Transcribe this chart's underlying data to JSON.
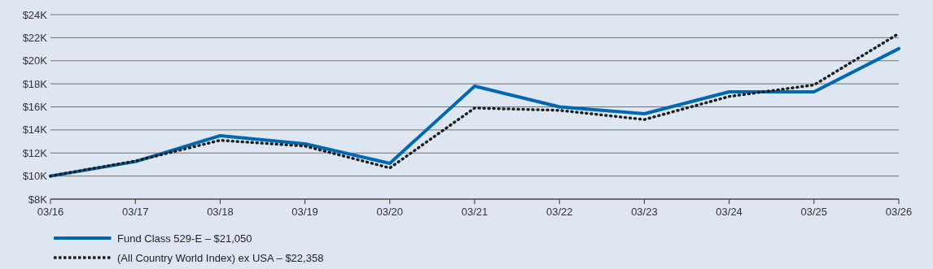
{
  "chart_data": {
    "type": "line",
    "categories": [
      "03/16",
      "03/17",
      "03/18",
      "03/19",
      "03/20",
      "03/21",
      "03/22",
      "03/23",
      "03/24",
      "03/25",
      "03/26"
    ],
    "series": [
      {
        "name": "Fund Class 529-E – $21,050",
        "color": "#0068b3",
        "line_style": "solid",
        "values": [
          10000,
          11250,
          13500,
          12800,
          11100,
          17800,
          16000,
          15400,
          17300,
          17300,
          21050
        ]
      },
      {
        "name": "(All Country World Index) ex USA – $22,358",
        "color": "#1f1f1f",
        "line_style": "dotted",
        "values": [
          10000,
          11300,
          13100,
          12600,
          10700,
          15900,
          15700,
          14900,
          16900,
          17900,
          22358
        ]
      }
    ],
    "ylim": [
      8000,
      24000
    ],
    "yticks": [
      {
        "value": 8000,
        "label": "$8K"
      },
      {
        "value": 10000,
        "label": "$10K"
      },
      {
        "value": 12000,
        "label": "$12K"
      },
      {
        "value": 14000,
        "label": "$14K"
      },
      {
        "value": 16000,
        "label": "$16K"
      },
      {
        "value": 18000,
        "label": "$18K"
      },
      {
        "value": 20000,
        "label": "$20K"
      },
      {
        "value": 22000,
        "label": "$22K"
      },
      {
        "value": 24000,
        "label": "$24K"
      }
    ],
    "grid": "y",
    "legend": "bottom left"
  }
}
